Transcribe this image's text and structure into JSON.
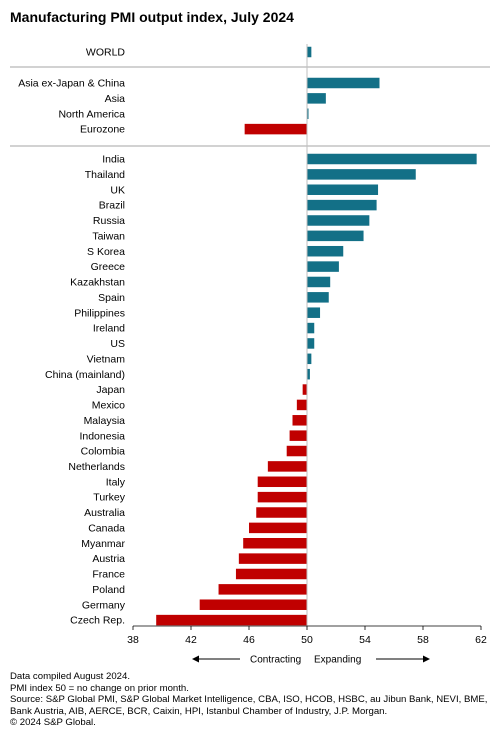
{
  "title": "Manufacturing PMI output index, July 2024",
  "colors": {
    "expanding": "#137087",
    "contracting": "#c00000",
    "divider": "#a6a6a6",
    "midline": "#bfbfbf"
  },
  "chart_data": {
    "type": "bar",
    "orientation": "horizontal",
    "baseline": 50,
    "xlim": [
      38,
      62
    ],
    "xticks": [
      "38",
      "42",
      "46",
      "50",
      "54",
      "58",
      "62"
    ],
    "xtick_values": [
      38,
      42,
      46,
      50,
      54,
      58,
      62
    ],
    "annotation_left": "Contracting",
    "annotation_right": "Expanding",
    "groups": [
      {
        "categories": [
          "WORLD"
        ],
        "values": [
          50.3
        ]
      },
      {
        "categories": [
          "Asia ex-Japan & China",
          "Asia",
          "North America",
          "Eurozone"
        ],
        "values": [
          55.0,
          51.3,
          50.1,
          45.7
        ]
      },
      {
        "categories": [
          "India",
          "Thailand",
          "UK",
          "Brazil",
          "Russia",
          "Taiwan",
          "S Korea",
          "Greece",
          "Kazakhstan",
          "Spain",
          "Philippines",
          "Ireland",
          "US",
          "Vietnam",
          "China (mainland)",
          "Japan",
          "Mexico",
          "Malaysia",
          "Indonesia",
          "Colombia",
          "Netherlands",
          "Italy",
          "Turkey",
          "Australia",
          "Canada",
          "Myanmar",
          "Austria",
          "France",
          "Poland",
          "Germany",
          "Czech Rep."
        ],
        "values": [
          61.7,
          57.5,
          54.9,
          54.8,
          54.3,
          53.9,
          52.5,
          52.2,
          51.6,
          51.5,
          50.9,
          50.5,
          50.5,
          50.3,
          50.2,
          49.7,
          49.3,
          49.0,
          48.8,
          48.6,
          47.3,
          46.6,
          46.6,
          46.5,
          46.0,
          45.6,
          45.3,
          45.1,
          43.9,
          42.6,
          39.6
        ]
      }
    ]
  },
  "footer": {
    "line1": "Data compiled August 2024.",
    "line2": "PMI index 50 = no change on prior month.",
    "line3": "Source: S&P Global PMI, S&P Global Market Intelligence, CBA, ISO, HCOB, HSBC, au Jibun Bank, NEVI, BME, Bank Austria, AIB, AERCE, BCR, Caixin, HPI, Istanbul Chamber of Industry, J.P. Morgan.",
    "line4": "© 2024 S&P Global."
  }
}
